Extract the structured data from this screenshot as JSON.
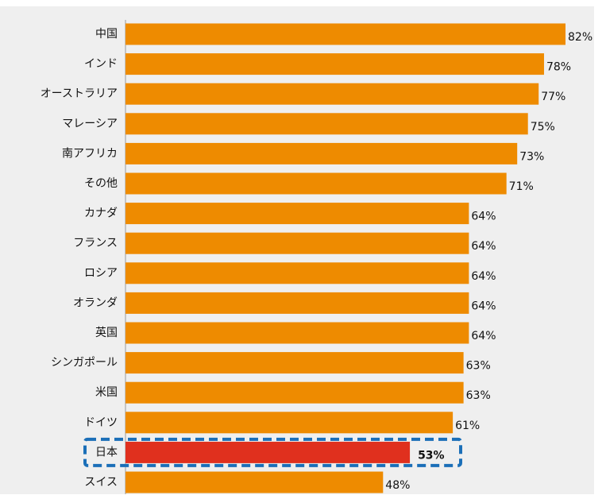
{
  "chart_data": {
    "type": "barh",
    "categories": [
      "中国",
      "インド",
      "オーストラリア",
      "マレーシア",
      "南アフリカ",
      "その他",
      "カナダ",
      "フランス",
      "ロシア",
      "オランダ",
      "英国",
      "シンガポール",
      "米国",
      "ドイツ",
      "日本",
      "スイス"
    ],
    "values": [
      82,
      78,
      77,
      75,
      73,
      71,
      64,
      64,
      64,
      64,
      64,
      63,
      63,
      61,
      53,
      48
    ],
    "value_labels": [
      "82%",
      "78%",
      "77%",
      "75%",
      "73%",
      "71%",
      "64%",
      "64%",
      "64%",
      "64%",
      "64%",
      "63%",
      "63%",
      "61%",
      "53%",
      "48%"
    ],
    "colors": [
      "#ee8b00",
      "#ee8b00",
      "#ee8b00",
      "#ee8b00",
      "#ee8b00",
      "#ee8b00",
      "#ee8b00",
      "#ee8b00",
      "#ee8b00",
      "#ee8b00",
      "#ee8b00",
      "#ee8b00",
      "#ee8b00",
      "#ee8b00",
      "#e0301e",
      "#ee8b00"
    ]
  }
}
